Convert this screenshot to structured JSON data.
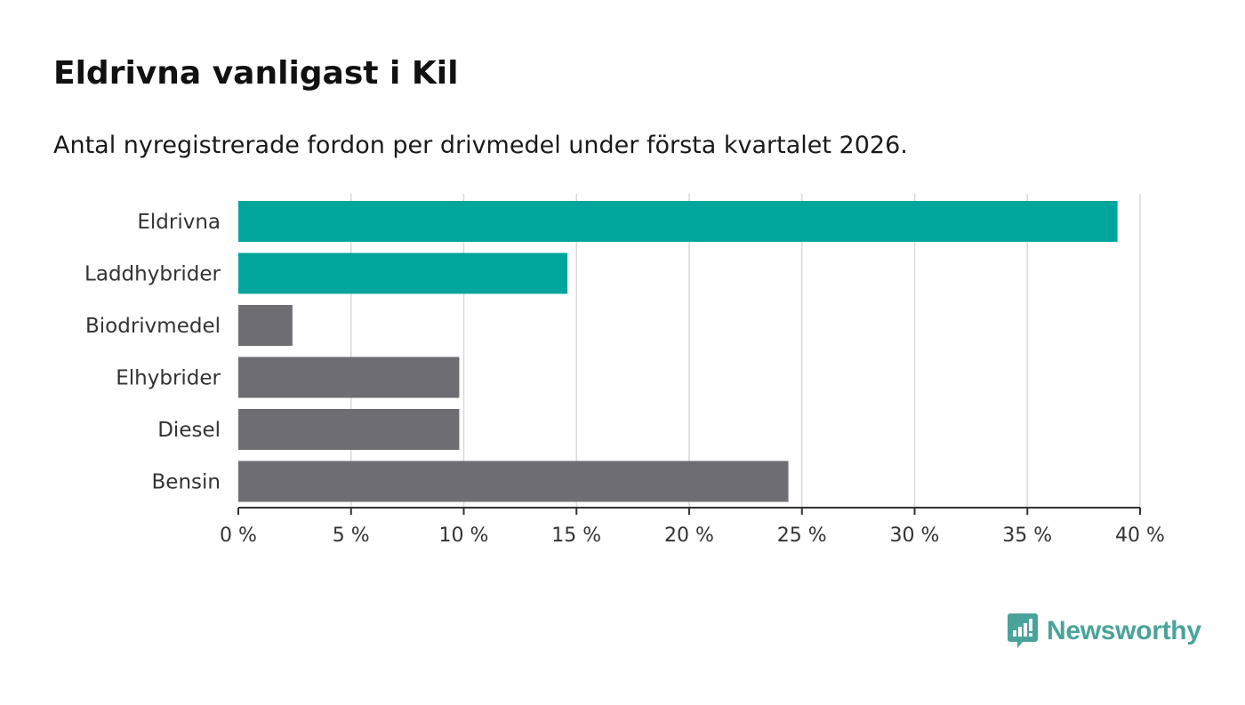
{
  "title": "Eldrivna vanligast i Kil",
  "subtitle": "Antal nyregistrerade fordon per drivmedel under första kvartalet 2026.",
  "brand": {
    "name": "Newsworthy",
    "icon": "newsworthy-logo-icon",
    "color": "#4aa39a"
  },
  "chart_data": {
    "type": "bar",
    "orientation": "horizontal",
    "title": "Eldrivna vanligast i Kil",
    "subtitle": "Antal nyregistrerade fordon per drivmedel under första kvartalet 2026.",
    "categories": [
      "Eldrivna",
      "Laddhybrider",
      "Biodrivmedel",
      "Elhybrider",
      "Diesel",
      "Bensin"
    ],
    "values": [
      39.0,
      14.6,
      2.4,
      9.8,
      9.8,
      24.4
    ],
    "colors": [
      "#00a59b",
      "#00a59b",
      "#6e6d74",
      "#6e6d74",
      "#6e6d74",
      "#6e6d74"
    ],
    "unit": "%",
    "xlim": [
      0,
      40
    ],
    "xticks": [
      0,
      5,
      10,
      15,
      20,
      25,
      30,
      35,
      40
    ],
    "xtick_labels": [
      "0 %",
      "5 %",
      "10 %",
      "15 %",
      "20 %",
      "25 %",
      "30 %",
      "35 %",
      "40 %"
    ],
    "grid": true,
    "legend": "none",
    "xlabel": "",
    "ylabel": ""
  }
}
